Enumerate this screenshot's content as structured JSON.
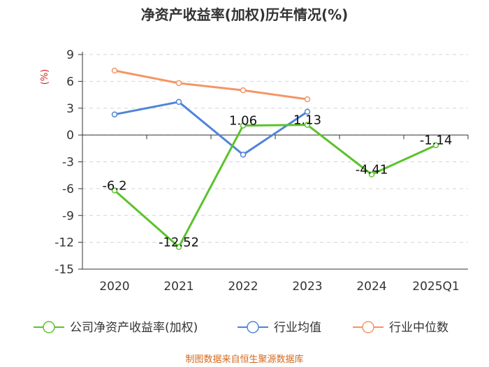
{
  "chart_data": {
    "type": "line",
    "title": "净资产收益率(加权)历年情况(%)",
    "ylabel": "(%)",
    "xlabel": "",
    "categories": [
      "2020",
      "2021",
      "2022",
      "2023",
      "2024",
      "2025Q1"
    ],
    "y_ticks": [
      "9",
      "6",
      "3",
      "0",
      "-3",
      "-6",
      "-9",
      "-12",
      "-15"
    ],
    "ylim": [
      -15,
      9
    ],
    "series": [
      {
        "name": "公司净资产收益率(加权)",
        "color": "#5cc22c",
        "values": [
          -6.2,
          -12.52,
          1.06,
          1.13,
          -4.41,
          -1.14
        ],
        "labels": [
          "-6.2",
          "-12.52",
          "1.06",
          "1.13",
          "-4.41",
          "-1.14"
        ]
      },
      {
        "name": "行业均值",
        "color": "#4f84d9",
        "values": [
          2.3,
          3.7,
          -2.2,
          2.6,
          null,
          null
        ]
      },
      {
        "name": "行业中位数",
        "color": "#f59565",
        "values": [
          7.2,
          5.8,
          5.0,
          4.0,
          null,
          null
        ]
      }
    ]
  },
  "footer": "制图数据来自恒生聚源数据库"
}
